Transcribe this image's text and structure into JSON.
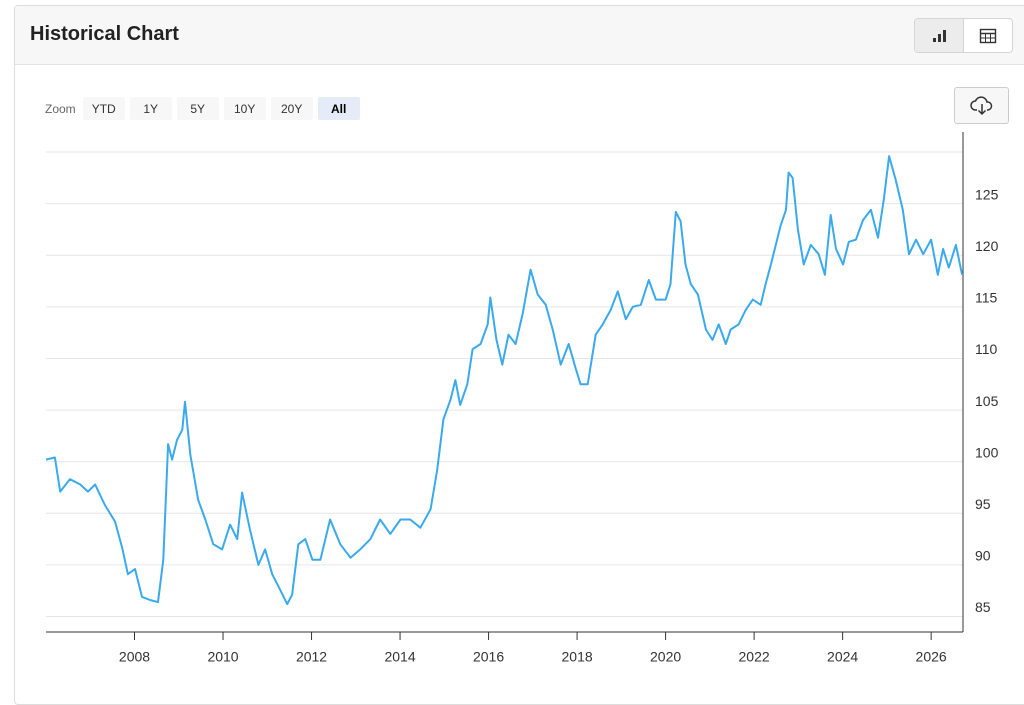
{
  "header": {
    "title": "Historical Chart"
  },
  "zoom": {
    "label": "Zoom",
    "options": [
      "YTD",
      "1Y",
      "5Y",
      "10Y",
      "20Y",
      "All"
    ],
    "active_index": 5
  },
  "chart_data": {
    "type": "line",
    "color": "#3aa9ee",
    "grid": true,
    "y_axis_side": "right",
    "x": [
      2006.0,
      2006.2,
      2006.32,
      2006.54,
      2006.77,
      2006.95,
      2007.11,
      2007.33,
      2007.56,
      2007.72,
      2007.85,
      2008.01,
      2008.17,
      2008.35,
      2008.53,
      2008.65,
      2008.76,
      2008.85,
      2008.96,
      2009.08,
      2009.14,
      2009.26,
      2009.44,
      2009.6,
      2009.78,
      2009.98,
      2010.16,
      2010.32,
      2010.43,
      2010.61,
      2010.8,
      2010.95,
      2011.11,
      2011.29,
      2011.45,
      2011.56,
      2011.7,
      2011.86,
      2012.02,
      2012.2,
      2012.42,
      2012.65,
      2012.88,
      2013.1,
      2013.33,
      2013.55,
      2013.78,
      2014.01,
      2014.23,
      2014.46,
      2014.69,
      2014.84,
      2014.98,
      2015.14,
      2015.25,
      2015.36,
      2015.52,
      2015.64,
      2015.82,
      2015.98,
      2016.04,
      2016.18,
      2016.31,
      2016.45,
      2016.61,
      2016.77,
      2016.95,
      2017.11,
      2017.29,
      2017.45,
      2017.63,
      2017.81,
      2017.97,
      2018.08,
      2018.24,
      2018.42,
      2018.58,
      2018.76,
      2018.92,
      2019.1,
      2019.26,
      2019.44,
      2019.62,
      2019.78,
      2020.0,
      2020.11,
      2020.23,
      2020.34,
      2020.45,
      2020.57,
      2020.73,
      2020.91,
      2021.06,
      2021.2,
      2021.36,
      2021.47,
      2021.65,
      2021.81,
      2021.97,
      2022.15,
      2022.26,
      2022.38,
      2022.49,
      2022.6,
      2022.72,
      2022.78,
      2022.87,
      2022.99,
      2023.12,
      2023.28,
      2023.46,
      2023.6,
      2023.73,
      2023.85,
      2024.01,
      2024.14,
      2024.3,
      2024.46,
      2024.64,
      2024.8,
      2024.93,
      2025.05,
      2025.2,
      2025.36,
      2025.5,
      2025.66,
      2025.82,
      2026.0,
      2026.15,
      2026.27,
      2026.4,
      2026.56,
      2026.7
    ],
    "values": [
      100.2,
      100.4,
      97.1,
      98.3,
      97.8,
      97.1,
      97.8,
      95.8,
      94.2,
      91.7,
      89.1,
      89.6,
      86.9,
      86.6,
      86.4,
      90.5,
      101.7,
      100.2,
      102.1,
      103.1,
      105.8,
      100.7,
      96.3,
      94.4,
      92.0,
      91.5,
      93.9,
      92.5,
      97.0,
      93.4,
      90.0,
      91.5,
      89.1,
      87.6,
      86.2,
      87.1,
      92.0,
      92.5,
      90.5,
      90.5,
      94.4,
      92.0,
      90.7,
      91.5,
      92.5,
      94.4,
      93.0,
      94.4,
      94.4,
      93.6,
      95.4,
      99.2,
      104.1,
      106.0,
      107.9,
      105.5,
      107.5,
      110.9,
      111.4,
      113.3,
      115.9,
      111.8,
      109.4,
      112.3,
      111.4,
      114.3,
      118.6,
      116.2,
      115.2,
      112.8,
      109.4,
      111.4,
      109.0,
      107.5,
      107.5,
      112.3,
      113.3,
      114.7,
      116.5,
      113.8,
      115.0,
      115.2,
      117.6,
      115.7,
      115.7,
      117.2,
      124.2,
      123.3,
      119.1,
      117.2,
      116.2,
      112.8,
      111.8,
      113.3,
      111.4,
      112.8,
      113.3,
      114.7,
      115.7,
      115.2,
      117.2,
      119.1,
      121.0,
      122.9,
      124.4,
      128.0,
      127.5,
      122.5,
      119.1,
      121.0,
      120.1,
      118.1,
      123.9,
      120.6,
      119.1,
      121.3,
      121.5,
      123.4,
      124.4,
      121.7,
      125.4,
      129.6,
      127.3,
      124.4,
      120.1,
      121.5,
      120.1,
      121.5,
      118.1,
      120.6,
      118.8,
      121.0,
      118.1
    ],
    "xlim": [
      2006,
      2026.72
    ],
    "xticks": [
      2008,
      2010,
      2012,
      2014,
      2016,
      2018,
      2020,
      2022,
      2024,
      2026
    ],
    "ylim": [
      83.5,
      130
    ],
    "yticks": [
      85,
      90,
      95,
      100,
      105,
      110,
      115,
      120,
      125
    ]
  }
}
